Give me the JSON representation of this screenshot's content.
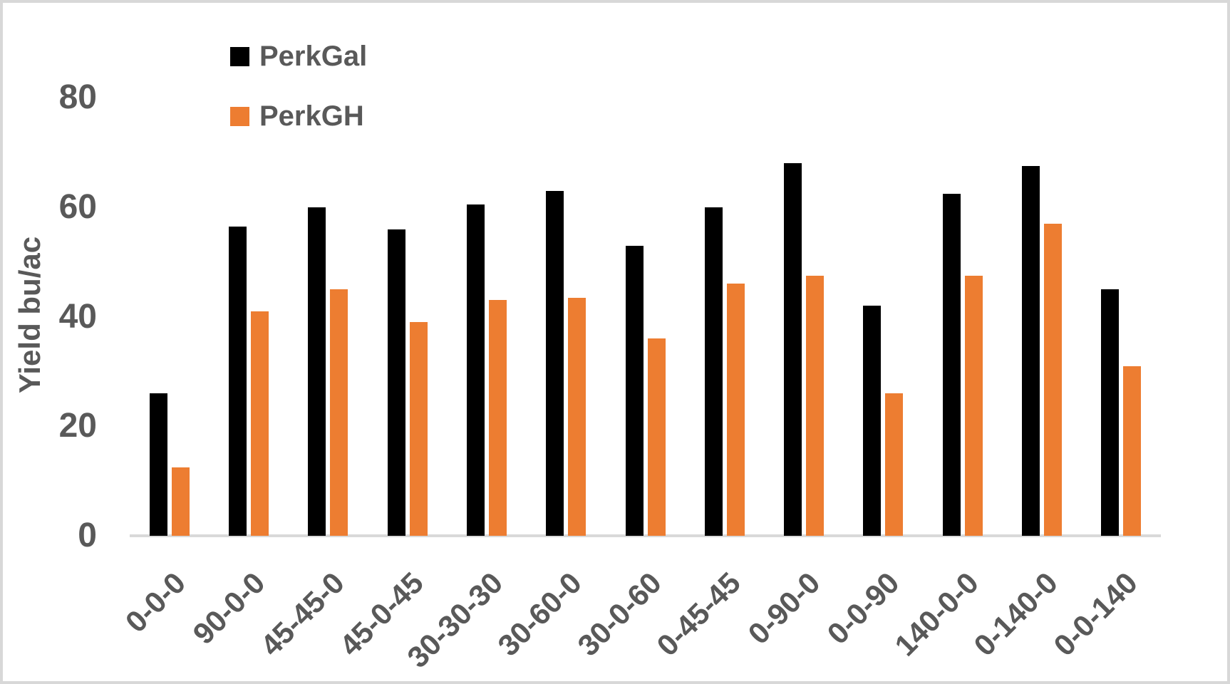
{
  "chart_data": {
    "type": "bar",
    "title": "",
    "xlabel": "",
    "ylabel": "Yield bu/ac",
    "ylim": [
      0,
      80
    ],
    "yticks": [
      0,
      20,
      40,
      60,
      80
    ],
    "grid": false,
    "legend_position": "top-left-inside",
    "categories": [
      "0-0-0",
      "90-0-0",
      "45-45-0",
      "45-0-45",
      "30-30-30",
      "30-60-0",
      "30-0-60",
      "0-45-45",
      "0-90-0",
      "0-0-90",
      "140-0-0",
      "0-140-0",
      "0-0-140"
    ],
    "series": [
      {
        "name": "PerkGal",
        "color": "#000000",
        "values": [
          26,
          56.5,
          60,
          56,
          60.5,
          63,
          53,
          60,
          68,
          42,
          62.5,
          67.5,
          45
        ]
      },
      {
        "name": "PerkGH",
        "color": "#ED7D31",
        "values": [
          12.5,
          41,
          45,
          39,
          43,
          43.5,
          36,
          46,
          47.5,
          26,
          47.5,
          57,
          31
        ]
      }
    ]
  },
  "colors": {
    "text": "#595959",
    "axis_line": "#D9D9D9",
    "background": "#FFFFFF",
    "frame_border": "#D8D8D8"
  }
}
